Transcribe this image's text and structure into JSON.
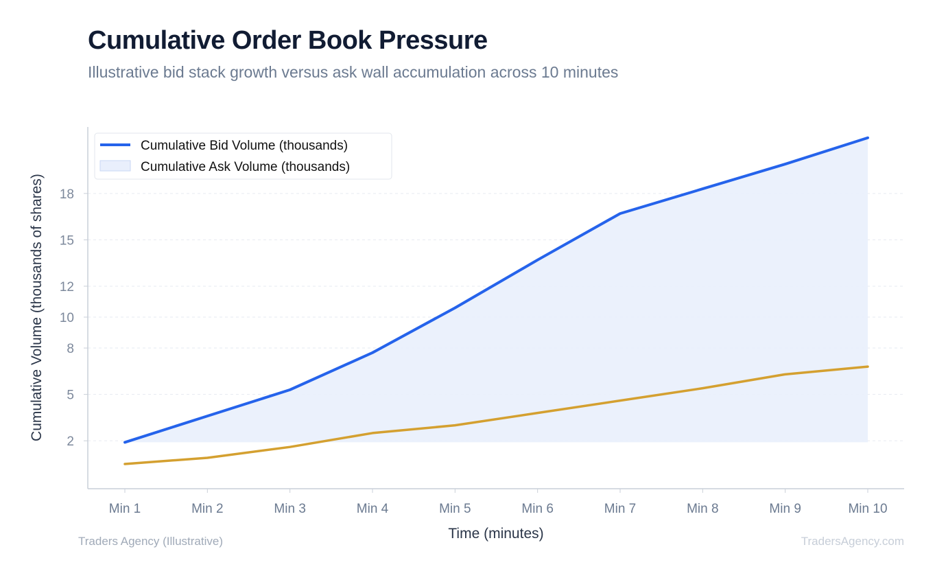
{
  "header": {
    "title": "Cumulative Order Book Pressure",
    "subtitle": "Illustrative bid stack growth versus ask wall accumulation across 10 minutes"
  },
  "footer": {
    "source": "Traders Agency (Illustrative)",
    "watermark": "TradersAgency.com"
  },
  "chart_data": {
    "type": "line",
    "categories": [
      "Min 1",
      "Min 2",
      "Min 3",
      "Min 4",
      "Min 5",
      "Min 6",
      "Min 7",
      "Min 8",
      "Min 9",
      "Min 10"
    ],
    "series": [
      {
        "name": "Cumulative Bid Volume (thousands)",
        "values": [
          1.9,
          3.6,
          5.3,
          7.7,
          10.6,
          13.7,
          16.7,
          18.3,
          19.9,
          21.6
        ],
        "color": "#2563eb",
        "style": "line"
      },
      {
        "name": "Cumulative Ask Volume (thousands)",
        "values": [
          0.5,
          0.9,
          1.6,
          2.5,
          3.0,
          3.8,
          4.6,
          5.4,
          6.3,
          6.8
        ],
        "color": "#d4a030",
        "style": "line"
      }
    ],
    "fill_between": {
      "color": "#e9effc",
      "legend_swatch": "area"
    },
    "xlabel": "Time (minutes)",
    "ylabel": "Cumulative Volume (thousands of shares)",
    "yticks": [
      2,
      5,
      8,
      10,
      12,
      15,
      18
    ],
    "ylim": [
      -1.1,
      22.3
    ],
    "grid": "horizontal dashed",
    "legend": "top-left"
  }
}
